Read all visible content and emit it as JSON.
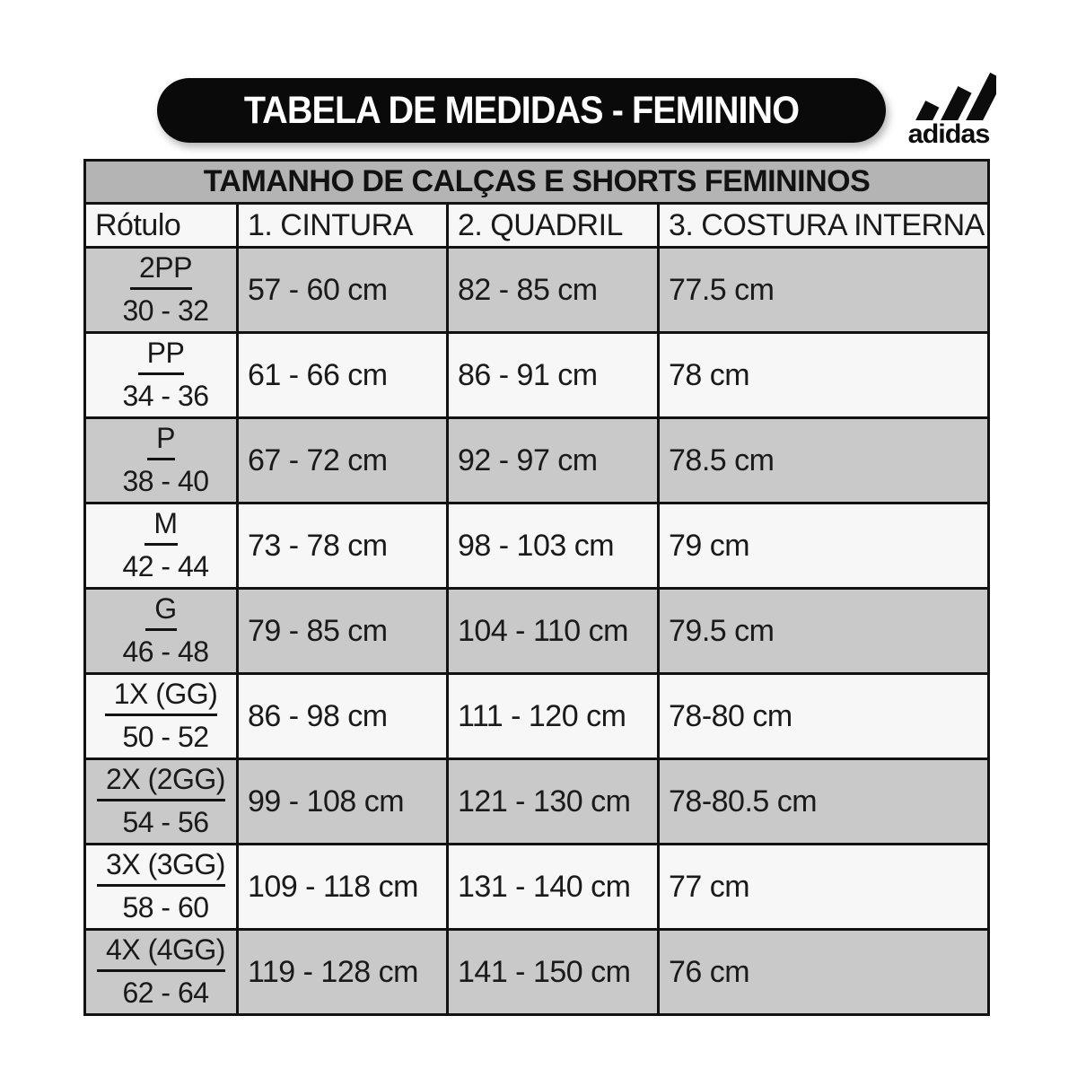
{
  "title": "TABELA DE MEDIDAS - FEMININO",
  "brand": {
    "wordmark": "adidas",
    "logo_icon": "adidas-three-stripes-icon",
    "color": "#0c0c0c"
  },
  "table": {
    "caption": "TAMANHO DE CALÇAS E SHORTS FEMININOS",
    "columns": [
      "Rótulo",
      "1. CINTURA",
      "2. QUADRIL",
      "3. COSTURA INTERNA"
    ],
    "rows": [
      {
        "label": "2PP",
        "sizes": "30 - 32",
        "waist": "57 - 60 cm",
        "hip": "82 - 85 cm",
        "inseam": "77.5 cm"
      },
      {
        "label": "PP",
        "sizes": "34 - 36",
        "waist": "61 - 66 cm",
        "hip": "86 - 91 cm",
        "inseam": "78 cm"
      },
      {
        "label": "P",
        "sizes": "38 - 40",
        "waist": "67 - 72 cm",
        "hip": "92 - 97 cm",
        "inseam": "78.5 cm"
      },
      {
        "label": "M",
        "sizes": "42 - 44",
        "waist": "73 - 78 cm",
        "hip": "98 - 103 cm",
        "inseam": "79 cm"
      },
      {
        "label": "G",
        "sizes": "46 - 48",
        "waist": "79 - 85 cm",
        "hip": "104 - 110 cm",
        "inseam": "79.5 cm"
      },
      {
        "label": "1X (GG)",
        "sizes": "50 - 52",
        "waist": "86 - 98 cm",
        "hip": "111 - 120 cm",
        "inseam": "78-80 cm"
      },
      {
        "label": "2X (2GG)",
        "sizes": "54 - 56",
        "waist": "99 - 108 cm",
        "hip": "121 - 130 cm",
        "inseam": "78-80.5 cm"
      },
      {
        "label": "3X (3GG)",
        "sizes": "58 - 60",
        "waist": "109 - 118 cm",
        "hip": "131 - 140 cm",
        "inseam": "77 cm"
      },
      {
        "label": "4X (4GG)",
        "sizes": "62 - 64",
        "waist": "119 - 128 cm",
        "hip": "141 - 150 cm",
        "inseam": "76 cm"
      }
    ]
  },
  "colors": {
    "banner_bg": "#0a0a0a",
    "banner_text": "#ffffff",
    "caption_bg": "#b4b4b4",
    "row_gray": "#c9c9c9",
    "row_light": "#f7f7f7",
    "border": "#121212",
    "text": "#1a1a1a"
  }
}
